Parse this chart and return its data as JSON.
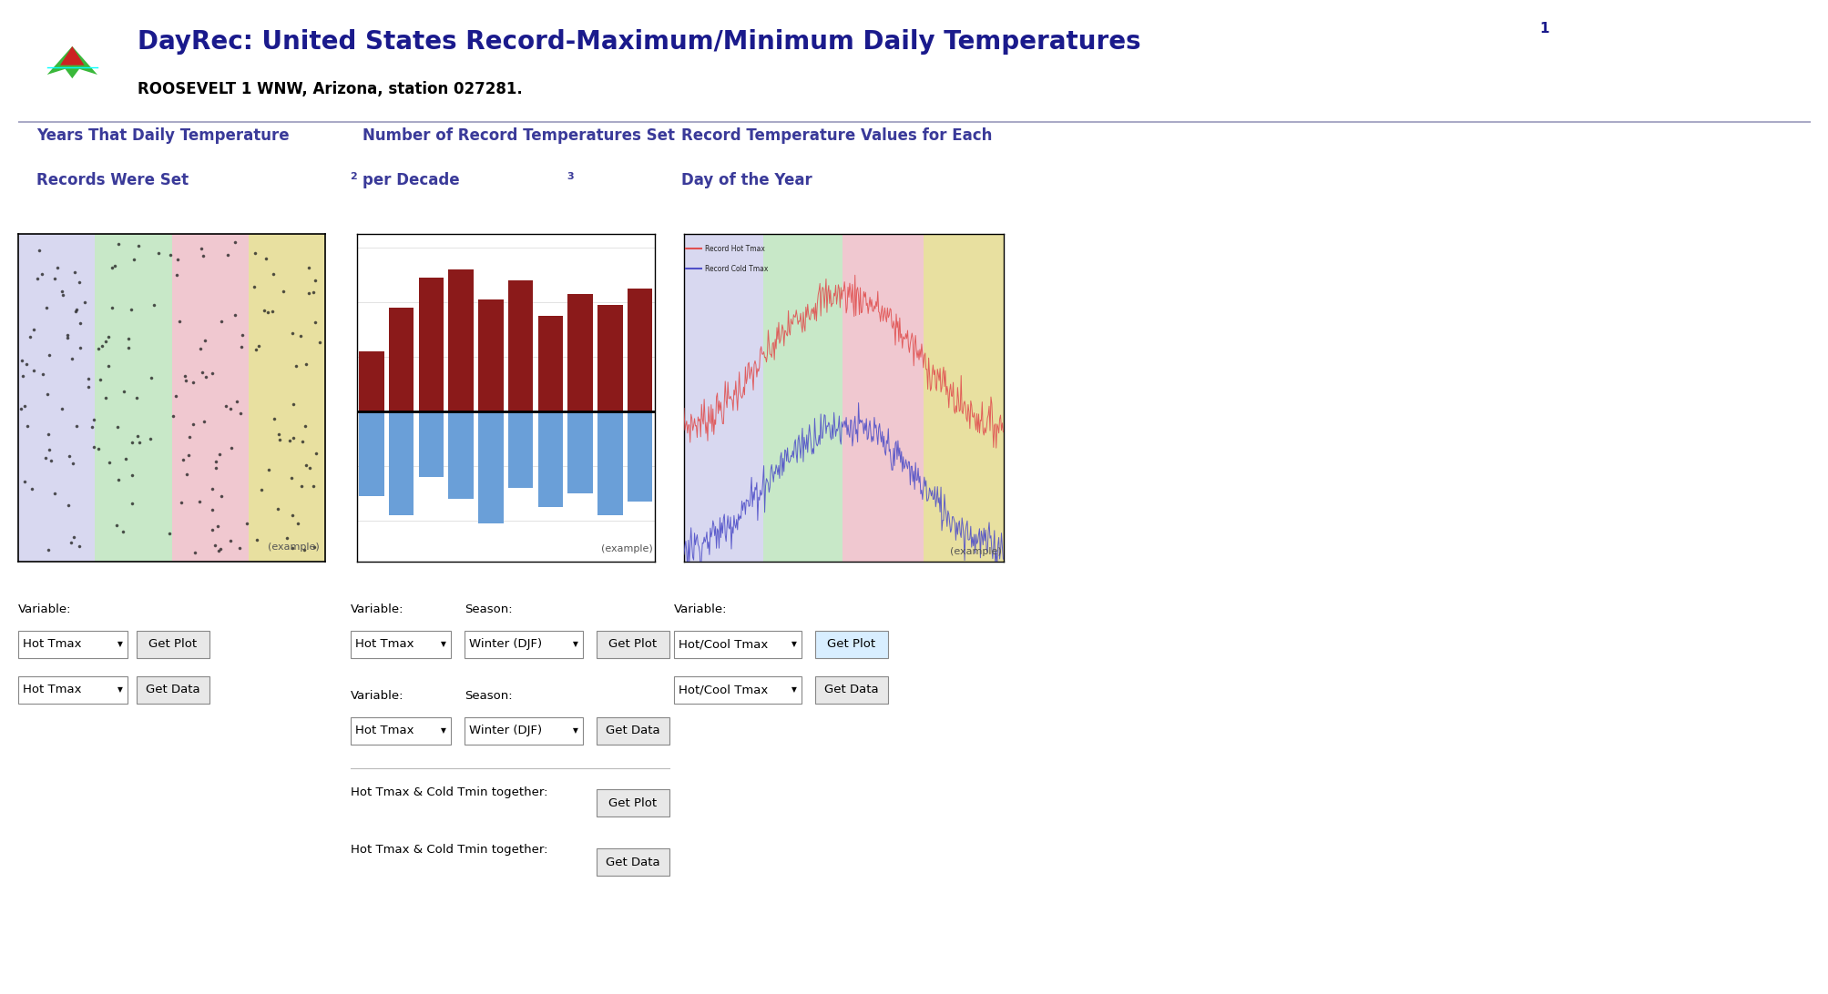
{
  "title_main": "DayRec: United States Record-Maximum/Minimum Daily Temperatures",
  "title_superscript": "1",
  "subtitle": "ROOSEVELT 1 WNW, Arizona, station 027281.",
  "bg_color": "#ffffff",
  "title_color": "#1a1a8c",
  "subtitle_color": "#000000",
  "hcn_box_color": "#1a3a8c",
  "section_title_color": "#3a3a99",
  "divider_color": "#9999bb",
  "season_colors": [
    "#d8d8f0",
    "#c8e8c8",
    "#f0c8d0",
    "#e8e0a0"
  ],
  "bar_positive_color": "#8b1a1a",
  "bar_negative_color": "#6a9fd8",
  "bar_values_pos": [
    2.2,
    3.8,
    4.9,
    5.2,
    4.1,
    4.8,
    3.5,
    4.3,
    3.9,
    4.5
  ],
  "bar_values_neg": [
    -3.1,
    -3.8,
    -2.4,
    -3.2,
    -4.1,
    -2.8,
    -3.5,
    -3.0,
    -3.8,
    -3.3
  ],
  "line_hot_color": "#e05050",
  "line_cold_color": "#5050c8",
  "example_text_color": "#555555",
  "button_bg": "#e8e8e8",
  "button_bg_highlighted": "#d8eeff",
  "button_border": "#888888",
  "label_variable": "Variable:",
  "label_season": "Season:",
  "btn_get_plot": "Get Plot",
  "btn_get_data": "Get Data",
  "combined_text": "Hot Tmax & Cold Tmin together:",
  "legend_hot": "Record Hot Tmax",
  "legend_cold": "Record Cold Tmax"
}
